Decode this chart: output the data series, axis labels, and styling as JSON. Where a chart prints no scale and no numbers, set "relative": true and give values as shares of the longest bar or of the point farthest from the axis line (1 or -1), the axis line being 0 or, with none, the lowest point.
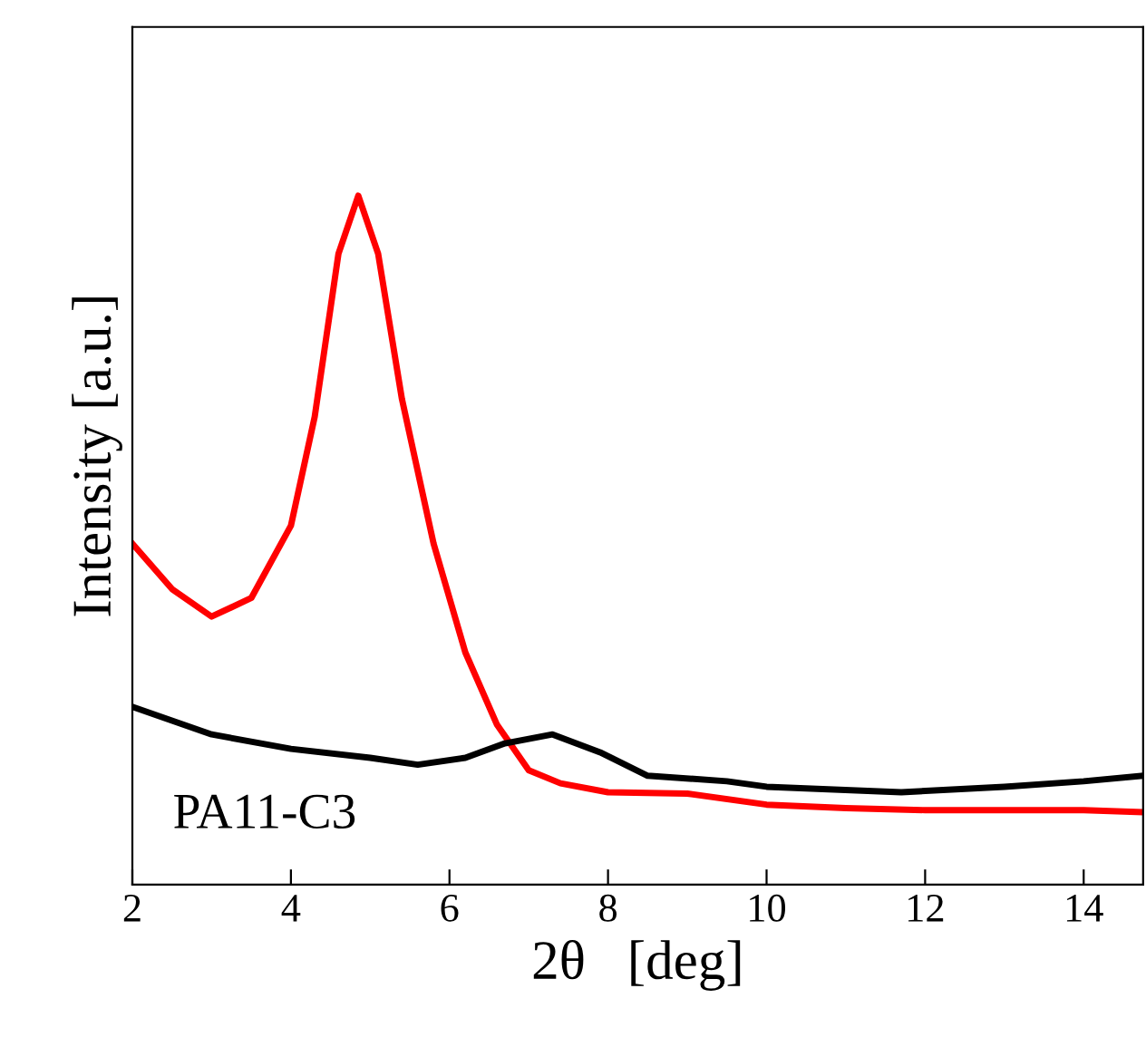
{
  "chart_data": {
    "type": "line",
    "relative": true,
    "xlabel": "2θ   [deg]",
    "ylabel": "Intensity [a.u.]",
    "xlim": [
      2,
      14.75
    ],
    "xticks": [
      2,
      4,
      6,
      8,
      10,
      12,
      14
    ],
    "tick_labels": "x",
    "grid": false,
    "legend": false,
    "marker": "none",
    "line_style": "solid",
    "series": [
      {
        "color": "#ff0000",
        "x": [
          2,
          2.5,
          3.0,
          3.5,
          4.0,
          4.3,
          4.6,
          4.85,
          5.1,
          5.4,
          5.8,
          6.2,
          6.6,
          7.0,
          7.4,
          8.0,
          9.0,
          10.0,
          11,
          12,
          13,
          14,
          14.75
        ],
        "values": [
          0.495,
          0.429,
          0.389,
          0.416,
          0.521,
          0.679,
          0.916,
          1.0,
          0.916,
          0.705,
          0.495,
          0.337,
          0.232,
          0.166,
          0.147,
          0.134,
          0.132,
          0.116,
          0.111,
          0.108,
          0.108,
          0.108,
          0.105
        ]
      },
      {
        "name": "PA11-C3",
        "color": "#000000",
        "x": [
          2,
          3,
          4,
          5,
          5.6,
          6.2,
          6.7,
          7.3,
          7.9,
          8.5,
          9.5,
          10,
          11.7,
          13,
          14,
          14.75
        ],
        "values": [
          0.258,
          0.218,
          0.197,
          0.184,
          0.174,
          0.184,
          0.205,
          0.218,
          0.192,
          0.158,
          0.15,
          0.142,
          0.134,
          0.142,
          0.15,
          0.158
        ]
      }
    ]
  }
}
